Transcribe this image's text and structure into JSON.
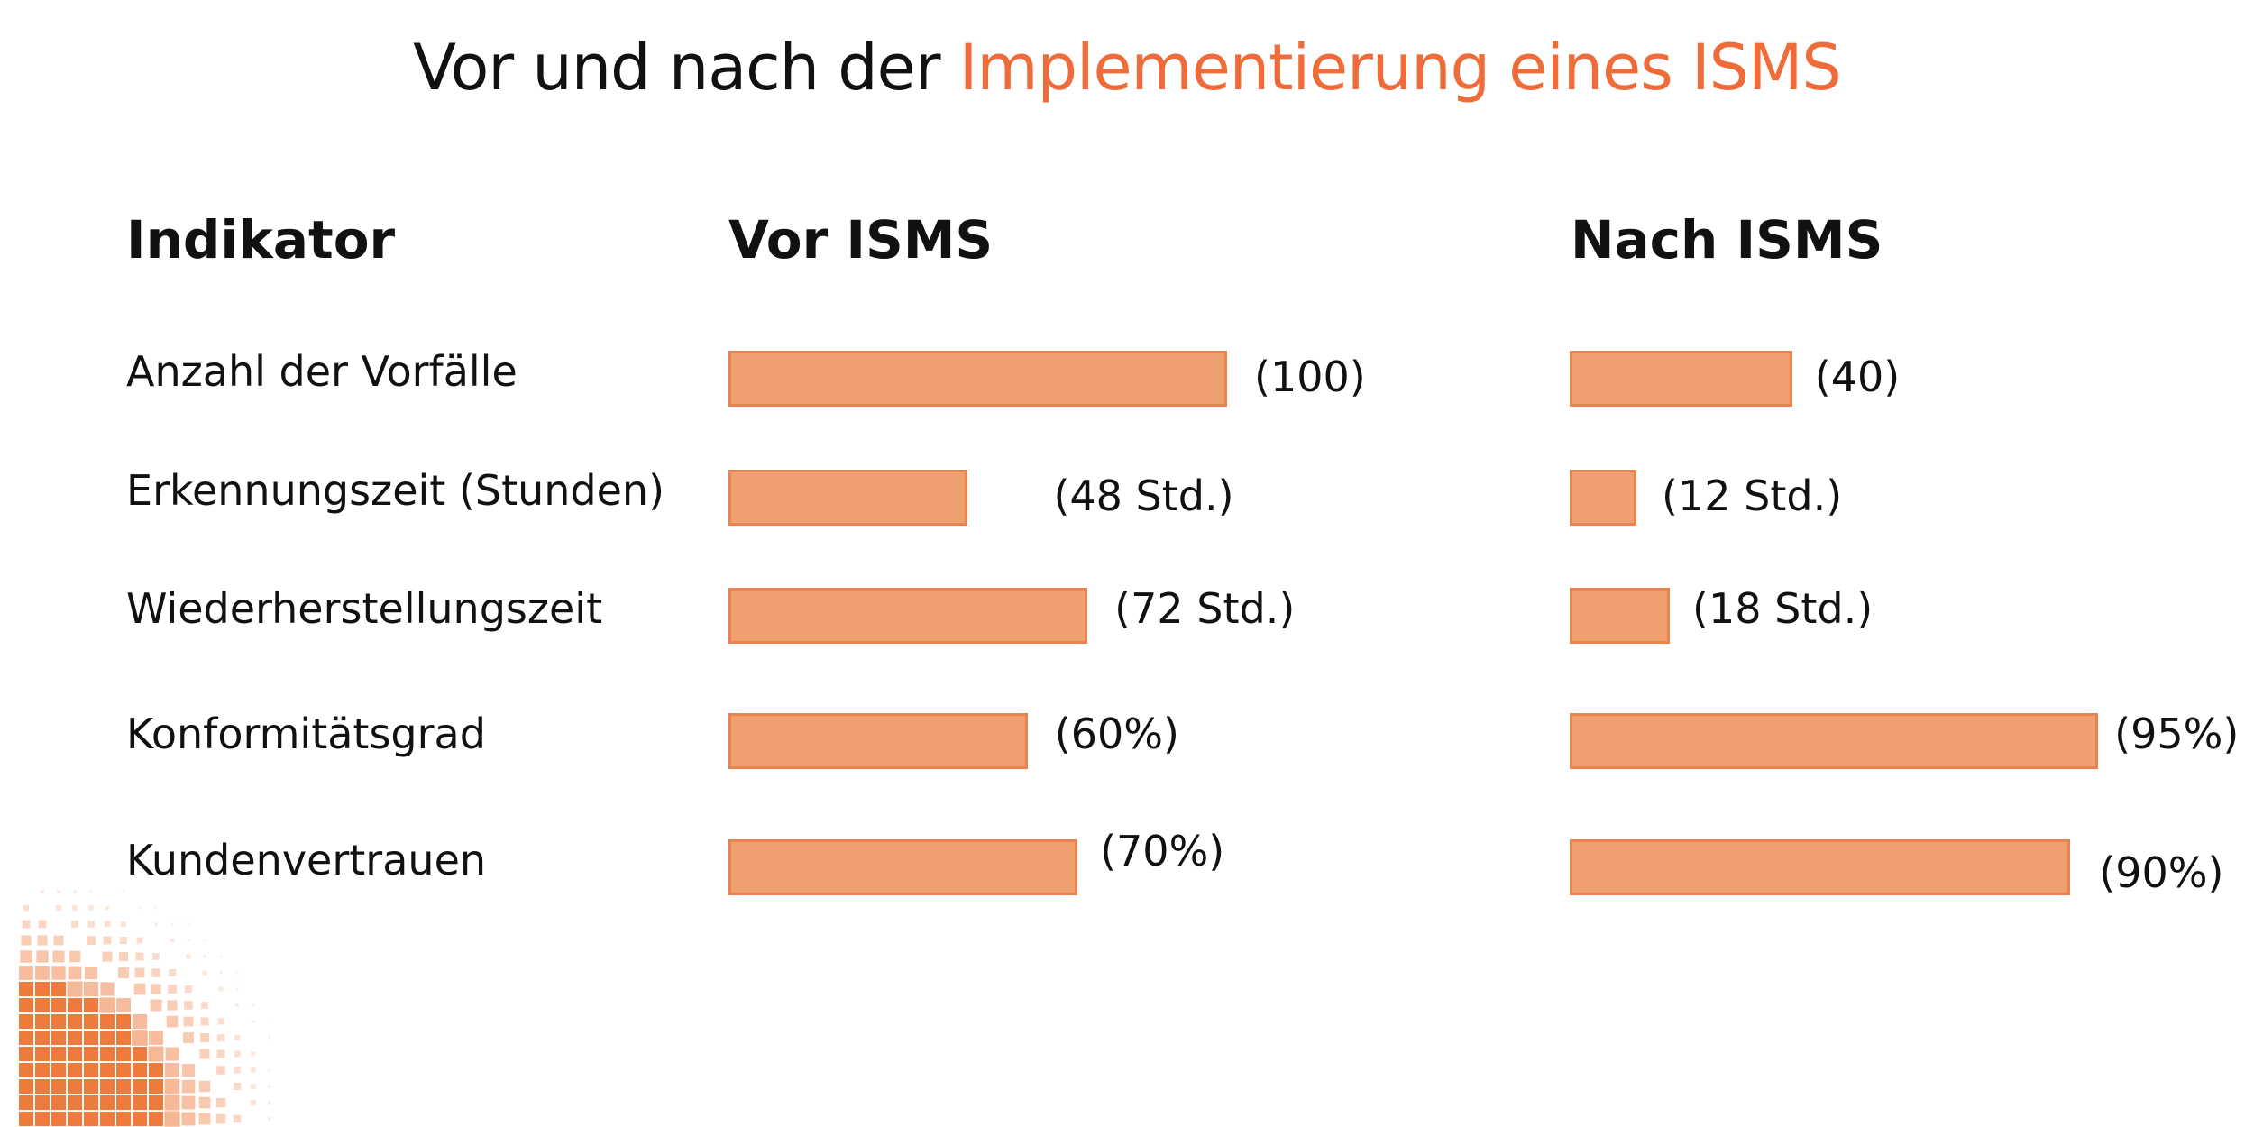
{
  "title": {
    "prefix": "Vor und nach der ",
    "highlight": "Implementierung eines ISMS"
  },
  "colors": {
    "accent": "#EE6B3A",
    "bar_fill": "#F0A070",
    "bar_border": "#E9844E",
    "decor": "#EE7A3C"
  },
  "headers": {
    "indicator": "Indikator",
    "before": "Vor ISMS",
    "after": "Nach ISMS"
  },
  "chart_data": {
    "type": "bar",
    "orientation": "horizontal",
    "categories": [
      "Anzahl der Vorfälle",
      "Erkennungszeit (Stunden)",
      "Wiederherstellungszeit",
      "Konformitätsgrad",
      "Kundenvertrauen"
    ],
    "series": [
      {
        "name": "Vor ISMS",
        "values": [
          100,
          48,
          72,
          60,
          70
        ],
        "labels": [
          "(100)",
          "(48 Std.)",
          "(72 Std.)",
          "(60%)",
          "(70%)"
        ]
      },
      {
        "name": "Nach ISMS",
        "values": [
          40,
          12,
          18,
          95,
          90
        ],
        "labels": [
          "(40)",
          "(12 Std.)",
          "(18 Std.)",
          "(95%)",
          "(90%)"
        ]
      }
    ],
    "grid": false,
    "legend": "none"
  }
}
